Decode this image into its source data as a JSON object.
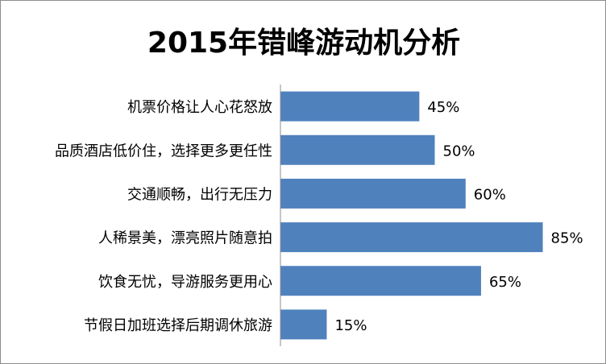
{
  "chart_data": {
    "type": "bar",
    "orientation": "horizontal",
    "title": "2015年错峰游动机分析",
    "categories": [
      "机票价格让人心花怒放",
      "品质酒店低价住，选择更多更任性",
      "交通顺畅，出行无压力",
      "人稀景美，漂亮照片随意拍",
      "饮食无忧，导游服务更用心",
      "节假日加班选择后期调休旅游"
    ],
    "values": [
      45,
      50,
      60,
      85,
      65,
      15
    ],
    "value_labels": [
      "45%",
      "50%",
      "60%",
      "85%",
      "65%",
      "15%"
    ],
    "unit": "%",
    "xlim": [
      0,
      100
    ],
    "grid": false,
    "legend": "none",
    "bar_color": "#4f81bd"
  }
}
